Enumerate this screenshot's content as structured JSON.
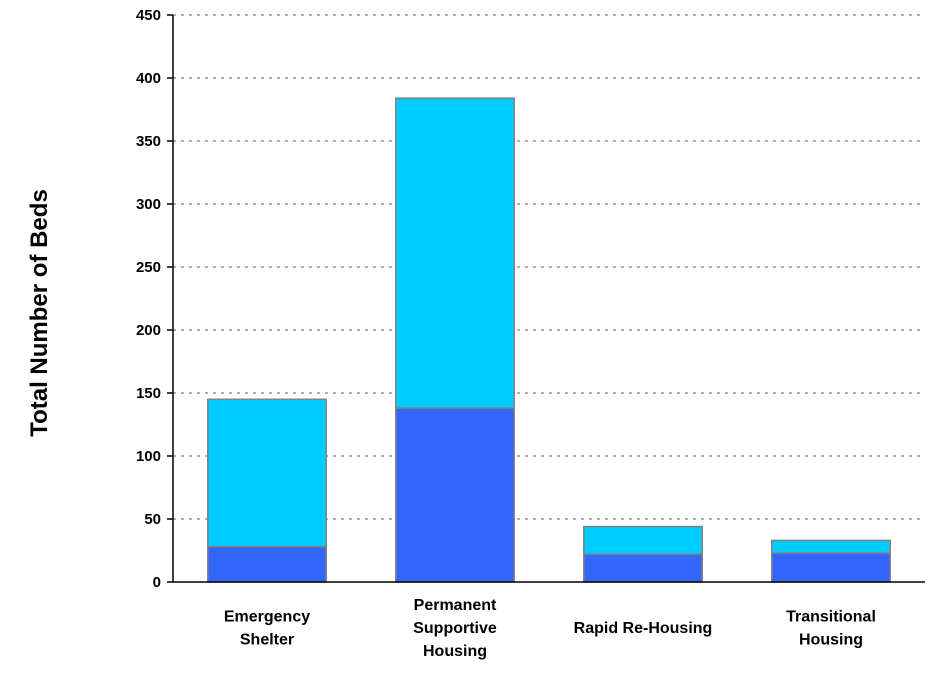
{
  "chart_data": {
    "type": "bar",
    "stacked": true,
    "title": "",
    "xlabel": "",
    "ylabel": "Total Number of Beds",
    "ylim": [
      0,
      450
    ],
    "yticks": [
      0,
      50,
      100,
      150,
      200,
      250,
      300,
      350,
      400,
      450
    ],
    "grid": true,
    "legend": "none",
    "categories": [
      [
        "Emergency",
        "Shelter"
      ],
      [
        "Permanent",
        "Supportive",
        "Housing"
      ],
      [
        "Rapid Re-Housing"
      ],
      [
        "Transitional",
        "Housing"
      ]
    ],
    "series": [
      {
        "values": [
          28,
          138,
          22,
          23
        ],
        "color": "#3366ff"
      },
      {
        "values": [
          117,
          246,
          22,
          10
        ],
        "color": "#00ccff"
      }
    ]
  }
}
